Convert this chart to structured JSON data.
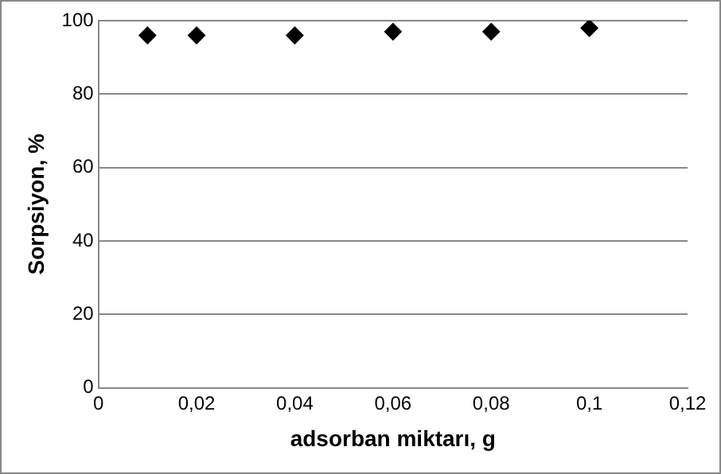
{
  "chart_data": {
    "type": "scatter",
    "xlabel": "adsorban miktarı, g",
    "ylabel": "Sorpsiyon, %",
    "x": [
      0.01,
      0.02,
      0.04,
      0.06,
      0.08,
      0.1
    ],
    "series": [
      {
        "color": "#000000",
        "values": [
          96,
          96,
          96,
          97,
          97,
          98
        ]
      }
    ],
    "xlim": [
      0,
      0.12
    ],
    "xticks": [
      0,
      {
        "value": 0.02,
        "label": "0,02"
      },
      {
        "value": 0.04,
        "label": "0,04"
      },
      {
        "value": 0.06,
        "label": "0,06"
      },
      {
        "value": 0.08,
        "label": "0,08"
      },
      {
        "value": 0.1,
        "label": "0,1"
      },
      {
        "value": 0.12,
        "label": "0,12"
      }
    ],
    "ylim": [
      0,
      100
    ],
    "yticks": [
      0,
      20,
      40,
      60,
      80,
      100
    ],
    "grid": "y",
    "marker": "diamond",
    "legend": false
  }
}
